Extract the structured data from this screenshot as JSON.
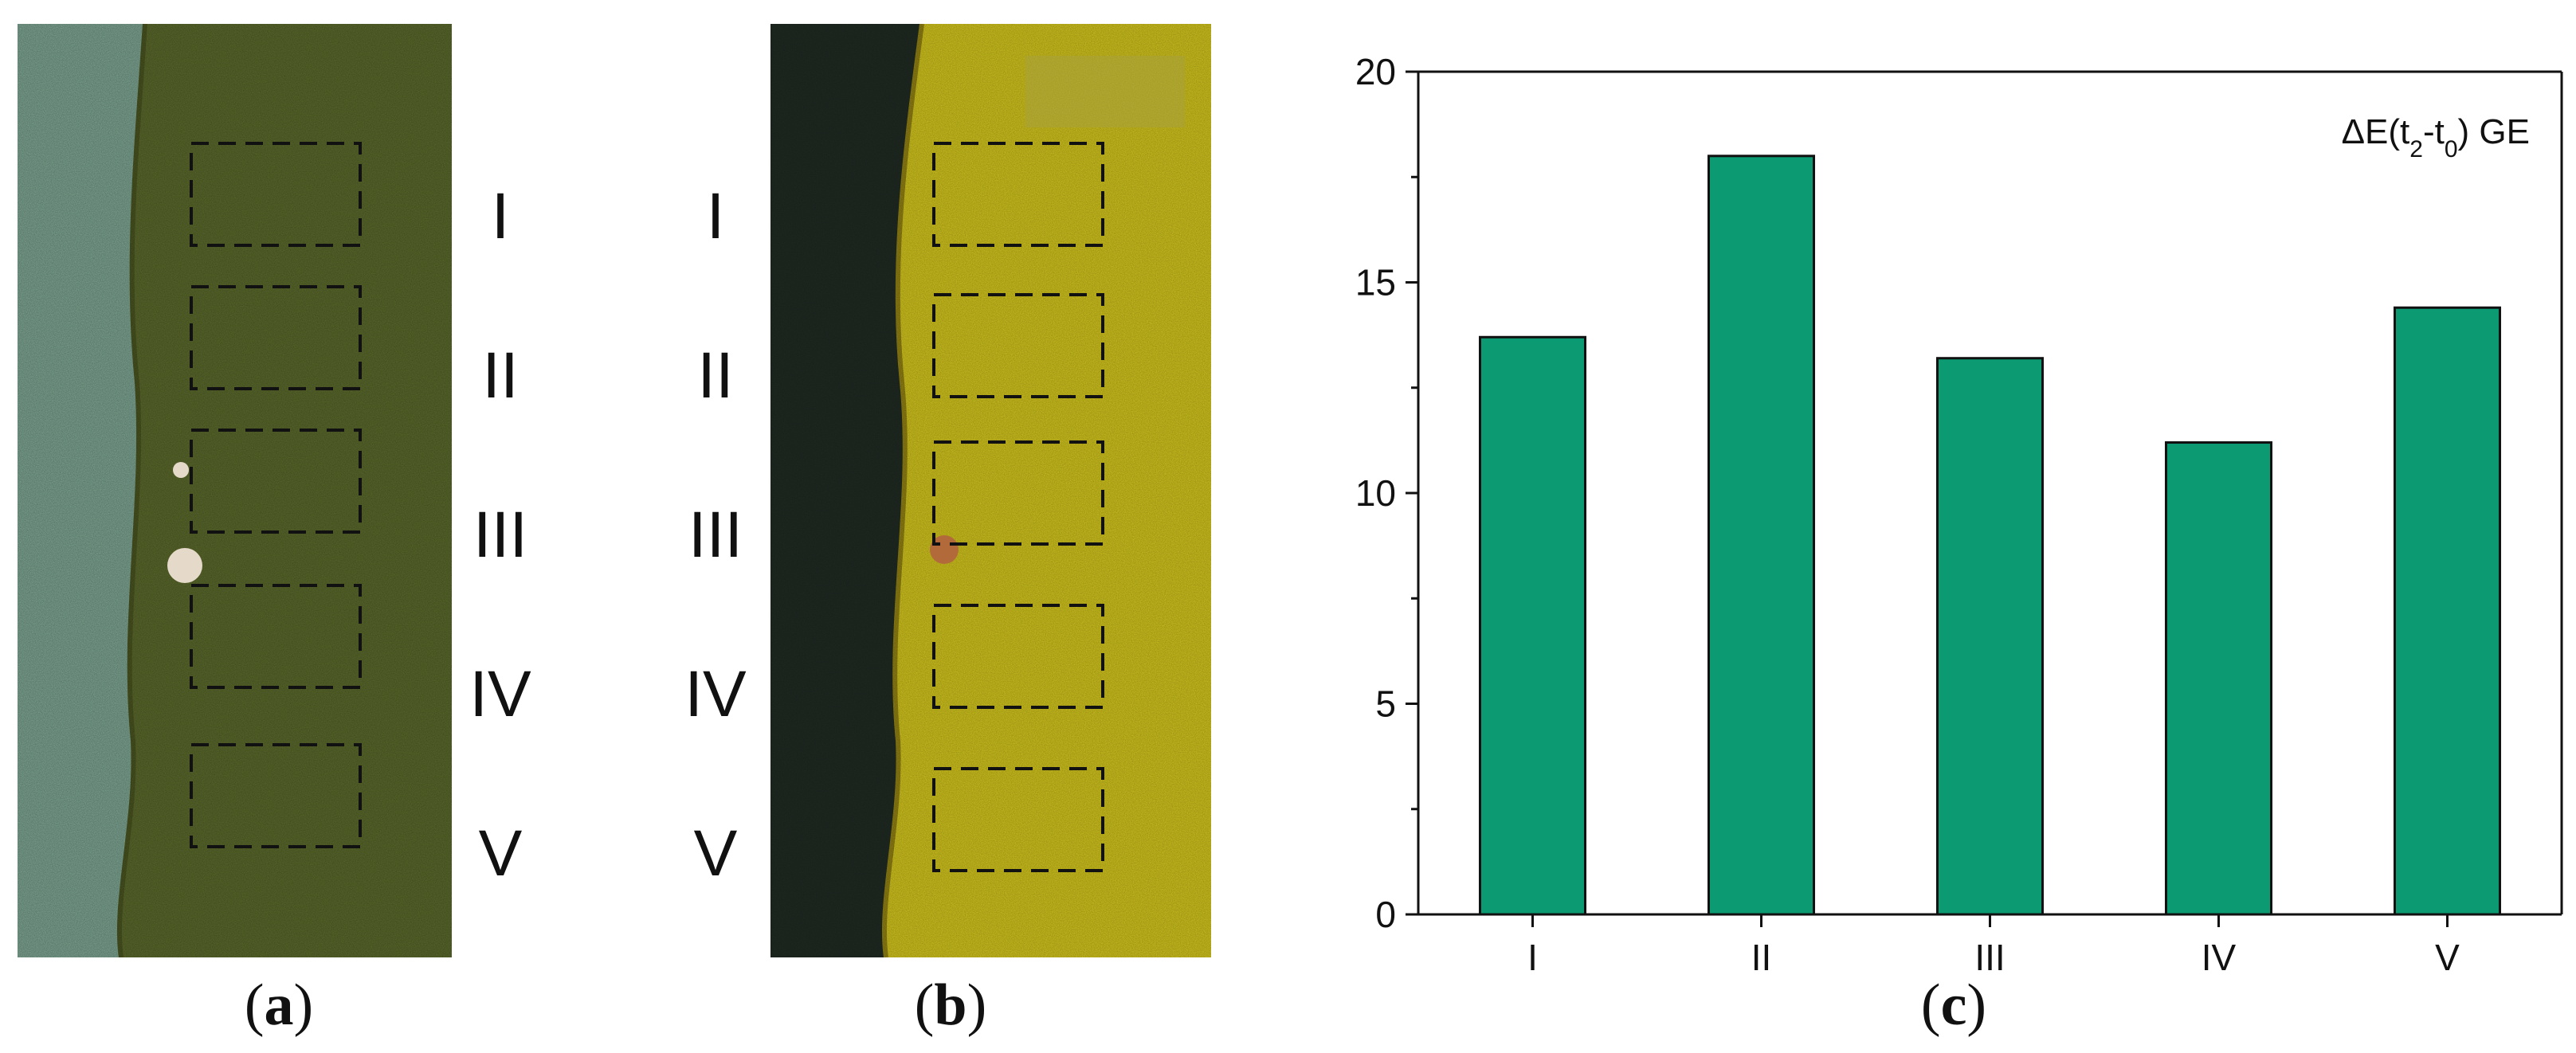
{
  "panels": {
    "a": {
      "caption_letter": "a",
      "region_labels": [
        "I",
        "II",
        "III",
        "IV",
        "V"
      ],
      "colors": {
        "left_strip": "#7ea693",
        "sample": "#5b6a2c",
        "edge": "#4a5520"
      }
    },
    "b": {
      "caption_letter": "b",
      "region_labels": [
        "I",
        "II",
        "III",
        "IV",
        "V"
      ],
      "colors": {
        "left_strip": "#1f2a22",
        "sample": "#cfc21d",
        "edge": "#8f7f12"
      }
    },
    "c": {
      "caption_letter": "c"
    }
  },
  "chart_data": {
    "type": "bar",
    "categories": [
      "I",
      "II",
      "III",
      "IV",
      "V"
    ],
    "series": [
      {
        "name": "ΔE(t2-t0) GE",
        "values": [
          13.7,
          18.0,
          13.2,
          11.2,
          14.4
        ]
      }
    ],
    "legend_text": {
      "prefix": "ΔE(t",
      "sub1": "2",
      "mid": "-t",
      "sub2": "0",
      "suffix": ") GE"
    },
    "ylim": [
      0,
      20
    ],
    "yticks": [
      0,
      5,
      10,
      15,
      20
    ],
    "bar_color": "#0b9a72",
    "legend_placement": "top-right",
    "grid": false
  }
}
